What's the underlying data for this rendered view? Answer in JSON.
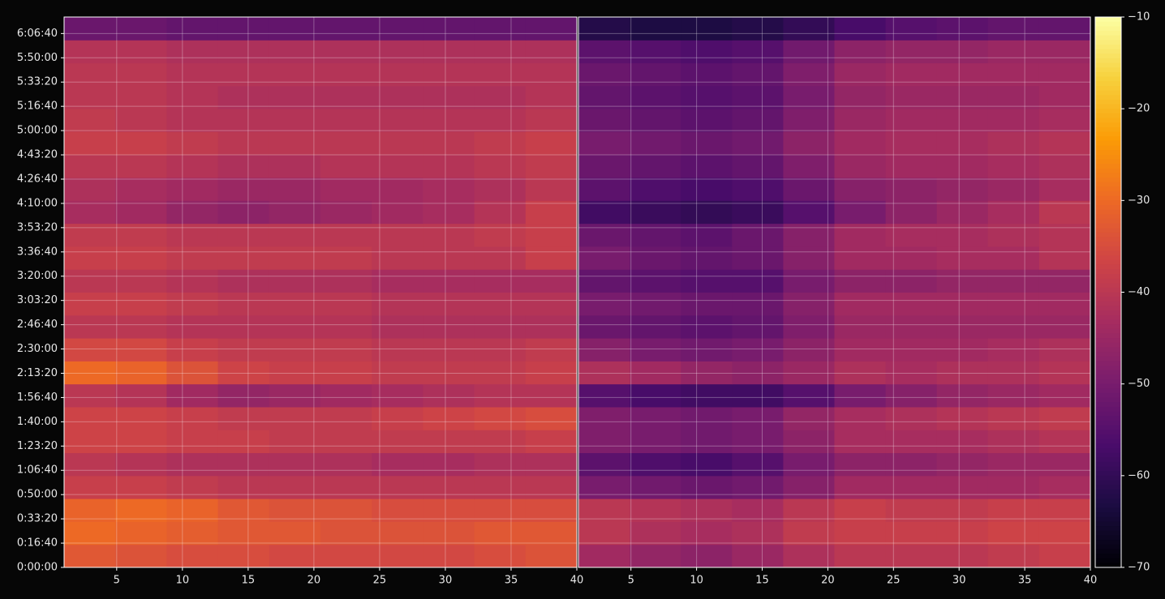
{
  "chart_data": {
    "type": "heatmap",
    "colormap": "inferno",
    "grid": true,
    "ylim": [
      0,
      22680
    ],
    "yticks": [
      {
        "value": 0,
        "label": "0:00:00"
      },
      {
        "value": 1000,
        "label": "0:16:40"
      },
      {
        "value": 2000,
        "label": "0:33:20"
      },
      {
        "value": 3000,
        "label": "0:50:00"
      },
      {
        "value": 4000,
        "label": "1:06:40"
      },
      {
        "value": 5000,
        "label": "1:23:20"
      },
      {
        "value": 6000,
        "label": "1:40:00"
      },
      {
        "value": 7000,
        "label": "1:56:40"
      },
      {
        "value": 8000,
        "label": "2:13:20"
      },
      {
        "value": 9000,
        "label": "2:30:00"
      },
      {
        "value": 10000,
        "label": "2:46:40"
      },
      {
        "value": 11000,
        "label": "3:03:20"
      },
      {
        "value": 12000,
        "label": "3:20:00"
      },
      {
        "value": 13000,
        "label": "3:36:40"
      },
      {
        "value": 14000,
        "label": "3:53:20"
      },
      {
        "value": 15000,
        "label": "4:10:00"
      },
      {
        "value": 16000,
        "label": "4:26:40"
      },
      {
        "value": 17000,
        "label": "4:43:20"
      },
      {
        "value": 18000,
        "label": "5:00:00"
      },
      {
        "value": 19000,
        "label": "5:16:40"
      },
      {
        "value": 20000,
        "label": "5:33:20"
      },
      {
        "value": 21000,
        "label": "5:50:00"
      },
      {
        "value": 22000,
        "label": "6:06:40"
      }
    ],
    "zlim": [
      -70,
      -10
    ],
    "zticks": [
      {
        "value": -70,
        "label": "−70"
      },
      {
        "value": -60,
        "label": "−60"
      },
      {
        "value": -50,
        "label": "−50"
      },
      {
        "value": -40,
        "label": "−40"
      },
      {
        "value": -30,
        "label": "−30"
      },
      {
        "value": -20,
        "label": "−20"
      },
      {
        "value": -10,
        "label": "−10"
      }
    ],
    "ybins": [
      0,
      945,
      1890,
      2835,
      3780,
      4725,
      5670,
      6615,
      7560,
      8505,
      9450,
      10395,
      11340,
      12285,
      13230,
      14175,
      15120,
      16065,
      17010,
      17955,
      18900,
      19845,
      20790,
      21735,
      22680
    ],
    "panels": [
      {
        "xlim": [
          1,
          40
        ],
        "xticks": [
          5,
          10,
          15,
          20,
          25,
          30,
          35,
          40
        ],
        "xbins": [
          1,
          4.9,
          8.8,
          12.7,
          16.6,
          20.5,
          24.4,
          28.3,
          32.2,
          36.1,
          40
        ],
        "values": [
          [
            -33,
            -34,
            -35,
            -35,
            -36,
            -36,
            -36,
            -36,
            -35,
            -34
          ],
          [
            -30,
            -31,
            -32,
            -33,
            -33,
            -34,
            -34,
            -34,
            -33,
            -33
          ],
          [
            -31,
            -30,
            -31,
            -33,
            -34,
            -34,
            -35,
            -35,
            -35,
            -35
          ],
          [
            -38,
            -38,
            -39,
            -40,
            -40,
            -40,
            -40,
            -40,
            -40,
            -40
          ],
          [
            -40,
            -41,
            -42,
            -42,
            -42,
            -42,
            -43,
            -43,
            -42,
            -42
          ],
          [
            -37,
            -37,
            -38,
            -38,
            -39,
            -39,
            -39,
            -39,
            -39,
            -38
          ],
          [
            -37,
            -37,
            -38,
            -39,
            -39,
            -39,
            -38,
            -37,
            -36,
            -35
          ],
          [
            -40,
            -41,
            -44,
            -46,
            -45,
            -44,
            -43,
            -42,
            -41,
            -41
          ],
          [
            -30,
            -31,
            -34,
            -37,
            -38,
            -38,
            -39,
            -39,
            -39,
            -38
          ],
          [
            -36,
            -36,
            -38,
            -39,
            -39,
            -39,
            -40,
            -40,
            -40,
            -39
          ],
          [
            -40,
            -40,
            -41,
            -41,
            -41,
            -41,
            -42,
            -42,
            -42,
            -42
          ],
          [
            -38,
            -38,
            -39,
            -40,
            -40,
            -40,
            -41,
            -41,
            -41,
            -41
          ],
          [
            -40,
            -40,
            -41,
            -42,
            -42,
            -42,
            -43,
            -43,
            -43,
            -43
          ],
          [
            -38,
            -38,
            -39,
            -39,
            -39,
            -39,
            -40,
            -40,
            -40,
            -38
          ],
          [
            -39,
            -39,
            -40,
            -40,
            -40,
            -40,
            -40,
            -40,
            -39,
            -38
          ],
          [
            -43,
            -44,
            -46,
            -47,
            -46,
            -45,
            -44,
            -43,
            -41,
            -38
          ],
          [
            -42,
            -43,
            -44,
            -45,
            -45,
            -44,
            -44,
            -43,
            -42,
            -40
          ],
          [
            -40,
            -40,
            -41,
            -42,
            -42,
            -41,
            -41,
            -41,
            -40,
            -39
          ],
          [
            -38,
            -38,
            -39,
            -40,
            -40,
            -40,
            -40,
            -40,
            -39,
            -38
          ],
          [
            -39,
            -40,
            -41,
            -41,
            -41,
            -41,
            -41,
            -41,
            -41,
            -40
          ],
          [
            -40,
            -40,
            -41,
            -42,
            -42,
            -42,
            -42,
            -42,
            -42,
            -41
          ],
          [
            -40,
            -40,
            -41,
            -41,
            -41,
            -41,
            -41,
            -41,
            -41,
            -41
          ],
          [
            -41,
            -41,
            -42,
            -42,
            -42,
            -42,
            -42,
            -42,
            -42,
            -42
          ],
          [
            -52,
            -52,
            -53,
            -53,
            -53,
            -53,
            -53,
            -53,
            -53,
            -53
          ]
        ]
      },
      {
        "xlim": [
          1,
          40
        ],
        "xticks": [
          5,
          10,
          15,
          20,
          25,
          30,
          35,
          40
        ],
        "xbins": [
          1,
          4.9,
          8.8,
          12.7,
          16.6,
          20.5,
          24.4,
          28.3,
          32.2,
          36.1,
          40
        ],
        "values": [
          [
            -44,
            -46,
            -47,
            -45,
            -42,
            -40,
            -40,
            -40,
            -39,
            -38
          ],
          [
            -40,
            -42,
            -43,
            -42,
            -39,
            -38,
            -38,
            -38,
            -37,
            -37
          ],
          [
            -40,
            -41,
            -42,
            -43,
            -40,
            -38,
            -39,
            -39,
            -38,
            -38
          ],
          [
            -50,
            -51,
            -52,
            -51,
            -48,
            -44,
            -44,
            -44,
            -44,
            -43
          ],
          [
            -54,
            -56,
            -57,
            -55,
            -50,
            -47,
            -47,
            -46,
            -45,
            -45
          ],
          [
            -49,
            -50,
            -51,
            -50,
            -47,
            -43,
            -43,
            -43,
            -42,
            -41
          ],
          [
            -49,
            -50,
            -51,
            -50,
            -46,
            -43,
            -42,
            -41,
            -40,
            -39
          ],
          [
            -55,
            -57,
            -58,
            -58,
            -55,
            -50,
            -48,
            -46,
            -45,
            -44
          ],
          [
            -42,
            -44,
            -46,
            -47,
            -45,
            -42,
            -43,
            -42,
            -42,
            -41
          ],
          [
            -48,
            -50,
            -51,
            -50,
            -47,
            -44,
            -44,
            -44,
            -43,
            -42
          ],
          [
            -52,
            -53,
            -54,
            -53,
            -49,
            -45,
            -45,
            -45,
            -45,
            -45
          ],
          [
            -50,
            -51,
            -52,
            -52,
            -48,
            -44,
            -44,
            -44,
            -44,
            -44
          ],
          [
            -53,
            -54,
            -55,
            -55,
            -50,
            -47,
            -47,
            -46,
            -46,
            -46
          ],
          [
            -50,
            -52,
            -53,
            -52,
            -48,
            -44,
            -44,
            -43,
            -43,
            -41
          ],
          [
            -52,
            -53,
            -54,
            -52,
            -48,
            -44,
            -43,
            -43,
            -42,
            -41
          ],
          [
            -58,
            -59,
            -60,
            -59,
            -55,
            -50,
            -47,
            -45,
            -43,
            -40
          ],
          [
            -54,
            -56,
            -57,
            -56,
            -52,
            -48,
            -47,
            -46,
            -45,
            -43
          ],
          [
            -52,
            -53,
            -54,
            -53,
            -49,
            -45,
            -44,
            -44,
            -43,
            -42
          ],
          [
            -50,
            -51,
            -52,
            -51,
            -47,
            -44,
            -43,
            -43,
            -42,
            -41
          ],
          [
            -52,
            -53,
            -54,
            -53,
            -49,
            -45,
            -44,
            -44,
            -44,
            -43
          ],
          [
            -53,
            -54,
            -55,
            -54,
            -50,
            -46,
            -45,
            -45,
            -45,
            -44
          ],
          [
            -52,
            -53,
            -54,
            -53,
            -49,
            -45,
            -44,
            -44,
            -44,
            -44
          ],
          [
            -54,
            -55,
            -56,
            -55,
            -51,
            -47,
            -46,
            -46,
            -45,
            -45
          ],
          [
            -62,
            -63,
            -63,
            -62,
            -60,
            -57,
            -55,
            -54,
            -53,
            -53
          ]
        ]
      }
    ]
  }
}
